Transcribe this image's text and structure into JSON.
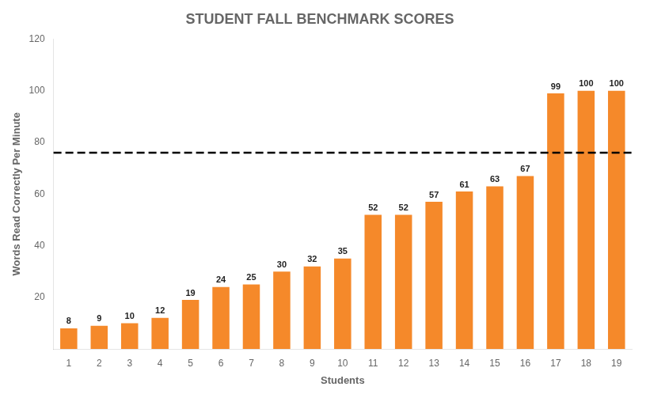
{
  "chart_data": {
    "type": "bar",
    "title": "STUDENT FALL BENCHMARK SCORES",
    "xlabel": "Students",
    "ylabel": "Words Read Correctly Per Minute",
    "categories": [
      1,
      2,
      3,
      4,
      5,
      6,
      7,
      8,
      9,
      10,
      11,
      12,
      13,
      14,
      15,
      16,
      17,
      18,
      19
    ],
    "values": [
      8,
      9,
      10,
      12,
      19,
      24,
      25,
      30,
      32,
      35,
      52,
      52,
      57,
      61,
      63,
      67,
      99,
      100,
      100
    ],
    "color": "#F5892A",
    "aim_line": {
      "value": 76,
      "color": "#000000"
    },
    "ylim": [
      0,
      120
    ],
    "yticks": [
      20,
      40,
      60,
      80,
      100,
      120
    ],
    "grid": false,
    "data_labels": true
  }
}
